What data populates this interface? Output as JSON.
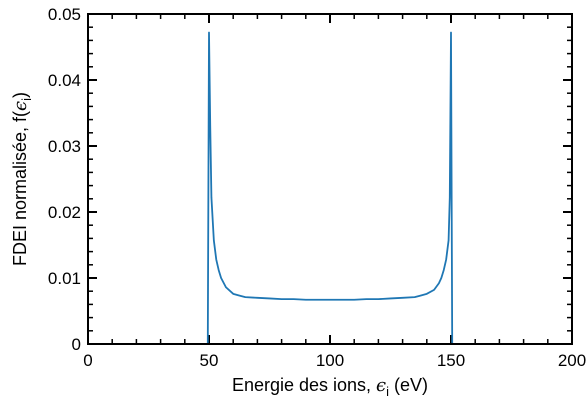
{
  "chart_data": {
    "type": "line",
    "title": "",
    "xlabel": {
      "text": "Energie des ions, ",
      "symbol": "ϵ",
      "subscript": "i",
      "suffix": " (eV)"
    },
    "ylabel": {
      "text": "FDEI normalisée, f(",
      "symbol": "ϵ",
      "subscript": "i",
      "suffix": ")"
    },
    "xlim": [
      0,
      200
    ],
    "ylim": [
      0,
      0.05
    ],
    "x_ticks": [
      0,
      50,
      100,
      150,
      200
    ],
    "x_tick_labels": [
      "0",
      "50",
      "100",
      "150",
      "200"
    ],
    "y_ticks": [
      0,
      0.01,
      0.02,
      0.03,
      0.04,
      0.05
    ],
    "y_tick_labels": [
      "0",
      "0.01",
      "0.02",
      "0.03",
      "0.04",
      "0.05"
    ],
    "grid": false,
    "line_color": "#1f77b4",
    "series": [
      {
        "x": [
          0,
          49.5,
          50,
          50.5,
          51,
          52,
          53,
          54,
          55,
          57,
          60,
          63,
          65,
          70,
          75,
          80,
          85,
          90,
          95,
          100,
          105,
          110,
          115,
          120,
          125,
          130,
          135,
          137,
          140,
          143,
          145,
          146,
          147,
          148,
          149,
          149.5,
          150,
          150.5,
          200
        ],
        "y": [
          0,
          0,
          0.0472,
          0.0332,
          0.0222,
          0.0157,
          0.0128,
          0.0112,
          0.01,
          0.0086,
          0.0076,
          0.0073,
          0.0071,
          0.007,
          0.0069,
          0.0068,
          0.0068,
          0.0067,
          0.0067,
          0.0067,
          0.0067,
          0.0067,
          0.0068,
          0.0068,
          0.0069,
          0.007,
          0.0071,
          0.0073,
          0.0076,
          0.0082,
          0.0092,
          0.01,
          0.0112,
          0.0128,
          0.0157,
          0.0222,
          0.0472,
          0,
          0
        ]
      }
    ]
  }
}
